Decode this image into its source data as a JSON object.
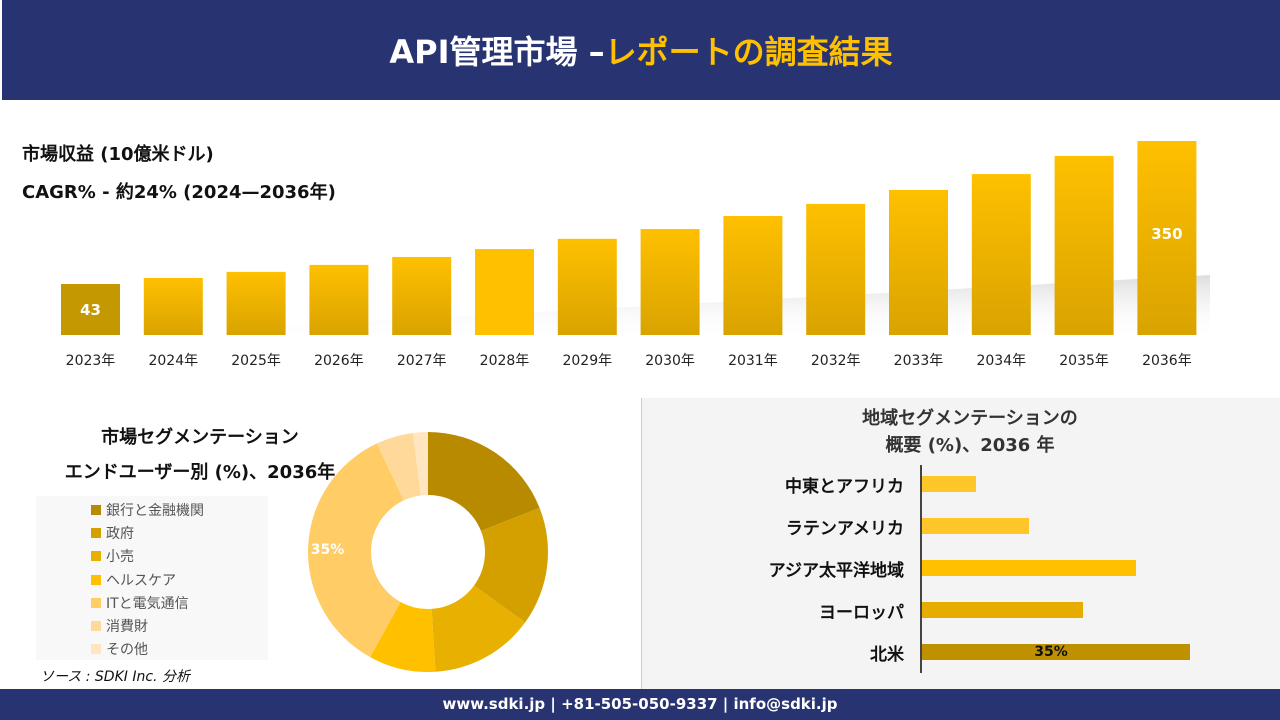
{
  "header": {
    "title_white": "API管理市場 –",
    "title_yellow": "レポートの調査結果"
  },
  "revenue": {
    "subtitle": "市場収益 (10億米ドル)",
    "cagr": "CAGR% - 約24% (2024—2036年)"
  },
  "footer": {
    "text": "www.sdki.jp | +81-505-050-9337 | info@sdki.jp"
  },
  "end_user": {
    "title_line1": "市場セグメンテーション",
    "title_line2": "エンドユーザー別 (%)、2036年"
  },
  "region": {
    "title_line1": "地域セグメンテーションの",
    "title_line2": "概要 (%)、2036 年"
  },
  "source": "ソース : SDKI Inc. 分析",
  "chart_data": [
    {
      "type": "bar",
      "categories": [
        "2023年",
        "2024年",
        "2025年",
        "2026年",
        "2027年",
        "2028年",
        "2029年",
        "2030年",
        "2031年",
        "2032年",
        "2033年",
        "2034年",
        "2035年",
        "2036年"
      ],
      "values": [
        43,
        56,
        69,
        84,
        101,
        118,
        140,
        161,
        189,
        215,
        245,
        279,
        318,
        350
      ],
      "data_labels": {
        "0": "43",
        "13": "350"
      },
      "grid": false
    },
    {
      "type": "pie",
      "donut": true,
      "categories": [
        "銀行と金融機関",
        "政府",
        "小売",
        "ヘルスケア",
        "ITと電気通信",
        "消費財",
        "その他"
      ],
      "values": [
        19,
        16,
        14,
        9,
        35,
        5,
        2
      ],
      "colors": [
        "#b88a00",
        "#d4a000",
        "#e8b000",
        "#ffc000",
        "#ffcc66",
        "#ffd99a",
        "#ffe6c0"
      ],
      "data_labels": {
        "4": "35%"
      },
      "legend": "left"
    },
    {
      "type": "bar",
      "orientation": "horizontal",
      "categories": [
        "中東とアフリカ",
        "ラテンアメリカ",
        "アジア太平洋地域",
        "ヨーロッパ",
        "北米"
      ],
      "values": [
        7,
        14,
        28,
        21,
        35
      ],
      "colors": [
        "#ffc629",
        "#ffc629",
        "#ffc000",
        "#e6ac00",
        "#bf9000"
      ],
      "data_labels": {
        "4": "35%"
      }
    }
  ]
}
